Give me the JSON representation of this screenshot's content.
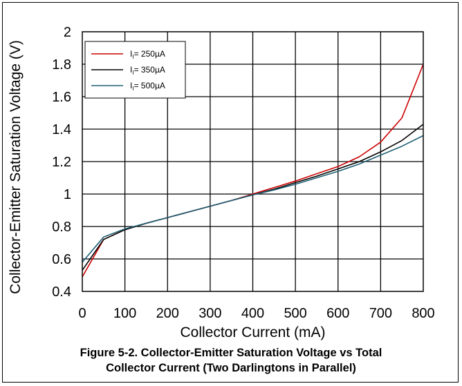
{
  "caption": {
    "line1": "Figure 5-2. Collector-Emitter Saturation Voltage vs Total",
    "line2": "Collector Current (Two Darlingtons in Parallel)"
  },
  "chart_data": {
    "type": "line",
    "title": "",
    "xlabel": "Collector Current (mA)",
    "ylabel": "Collector-Emitter Saturation Voltage (V)",
    "xlim": [
      0,
      800
    ],
    "ylim": [
      0.4,
      2
    ],
    "xticks": [
      0,
      100,
      200,
      300,
      400,
      500,
      600,
      700,
      800
    ],
    "xtick_labels": [
      "0",
      "100",
      "200",
      "300",
      "400",
      "500",
      "600",
      "700",
      "800"
    ],
    "yticks": [
      0.4,
      0.6,
      0.8,
      1.0,
      1.2,
      1.4,
      1.6,
      1.8,
      2.0
    ],
    "ytick_labels": [
      "0.4",
      "0.6",
      "0.8",
      "1",
      "1.2",
      "1.4",
      "1.6",
      "1.8",
      "2"
    ],
    "grid": true,
    "legend_position": "top-left",
    "series": [
      {
        "name": "I",
        "name_sub": "I",
        "name_suffix": "= 250µA",
        "color": "#cc0000",
        "x": [
          0,
          50,
          100,
          150,
          200,
          250,
          300,
          350,
          400,
          450,
          500,
          550,
          600,
          650,
          700,
          750,
          800
        ],
        "y": [
          0.49,
          0.72,
          0.78,
          0.82,
          0.855,
          0.89,
          0.925,
          0.96,
          1.0,
          1.04,
          1.08,
          1.125,
          1.17,
          1.23,
          1.32,
          1.47,
          1.8
        ]
      },
      {
        "name": "I",
        "name_sub": "I",
        "name_suffix": "= 350µA",
        "color": "#000000",
        "x": [
          0,
          50,
          100,
          150,
          200,
          250,
          300,
          350,
          400,
          450,
          500,
          550,
          600,
          650,
          700,
          750,
          800
        ],
        "y": [
          0.53,
          0.72,
          0.78,
          0.82,
          0.855,
          0.89,
          0.925,
          0.96,
          0.995,
          1.03,
          1.07,
          1.11,
          1.155,
          1.2,
          1.26,
          1.33,
          1.43
        ]
      },
      {
        "name": "I",
        "name_sub": "I",
        "name_suffix": "= 500µA",
        "color": "#1f5f74",
        "x": [
          0,
          50,
          100,
          150,
          200,
          250,
          300,
          350,
          400,
          450,
          500,
          550,
          600,
          650,
          700,
          750,
          800
        ],
        "y": [
          0.58,
          0.735,
          0.785,
          0.82,
          0.855,
          0.89,
          0.925,
          0.96,
          0.995,
          1.025,
          1.06,
          1.1,
          1.14,
          1.185,
          1.24,
          1.295,
          1.36
        ]
      }
    ]
  }
}
